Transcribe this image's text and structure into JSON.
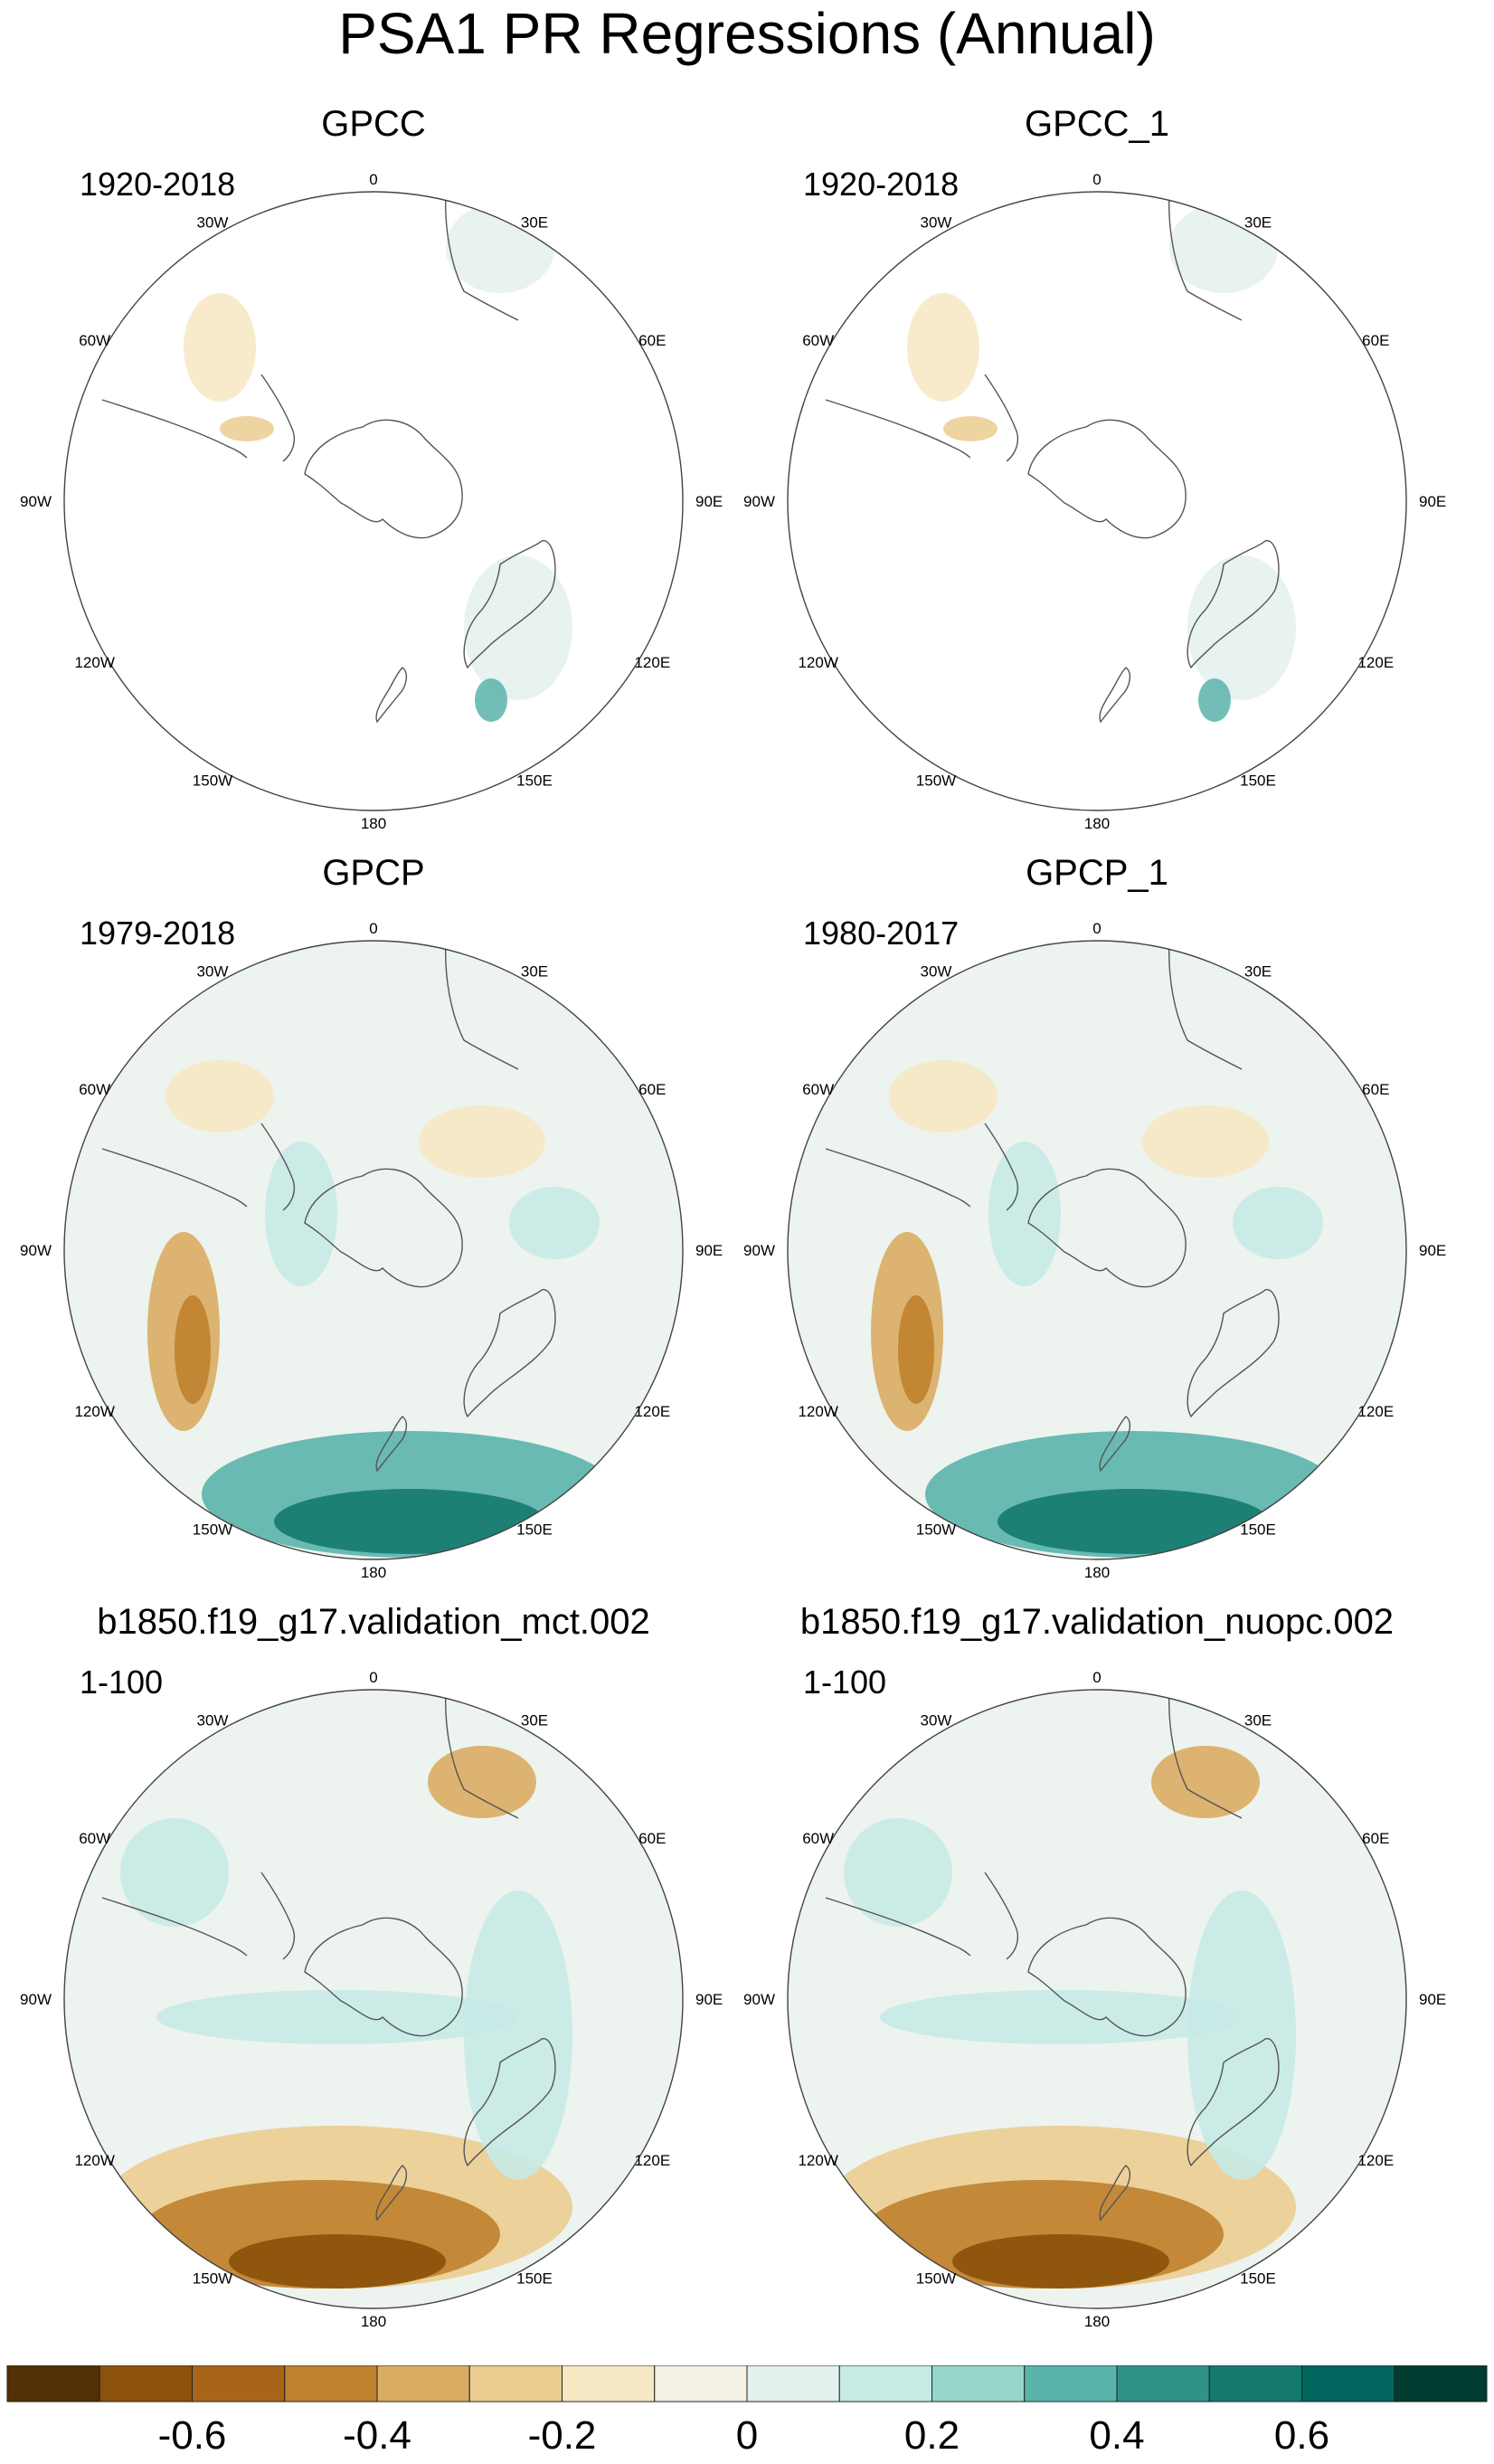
{
  "title": "PSA1 PR Regressions (Annual)",
  "panels": [
    {
      "title": "GPCC",
      "period": "1920-2018",
      "coverage": "land"
    },
    {
      "title": "GPCC_1",
      "period": "1920-2018",
      "coverage": "land"
    },
    {
      "title": "GPCP",
      "period": "1979-2018",
      "coverage": "full"
    },
    {
      "title": "GPCP_1",
      "period": "1980-2017",
      "coverage": "full"
    },
    {
      "title": "b1850.f19_g17.validation_mct.002",
      "period": "1-100",
      "coverage": "full"
    },
    {
      "title": "b1850.f19_g17.validation_nuopc.002",
      "period": "1-100",
      "coverage": "full"
    }
  ],
  "longitude_labels": [
    "0",
    "30E",
    "60E",
    "90E",
    "120E",
    "150E",
    "180",
    "150W",
    "120W",
    "90W",
    "60W",
    "30W"
  ],
  "colorbar": {
    "levels": [
      -0.7,
      -0.6,
      -0.5,
      -0.4,
      -0.3,
      -0.2,
      -0.1,
      0,
      0.1,
      0.2,
      0.3,
      0.4,
      0.5,
      0.6,
      0.7
    ],
    "labels": [
      "-0.6",
      "-0.4",
      "-0.2",
      "0",
      "0.2",
      "0.4",
      "0.6"
    ],
    "colors": [
      "#543005",
      "#8c510a",
      "#a86517",
      "#bf812d",
      "#d9ac62",
      "#ebcd91",
      "#f6e8c3",
      "#f5f0e4",
      "#e3f0ee",
      "#c7eae5",
      "#97d6cb",
      "#5ab4ac",
      "#2e9488",
      "#157a6e",
      "#01665e",
      "#003c30"
    ]
  }
}
